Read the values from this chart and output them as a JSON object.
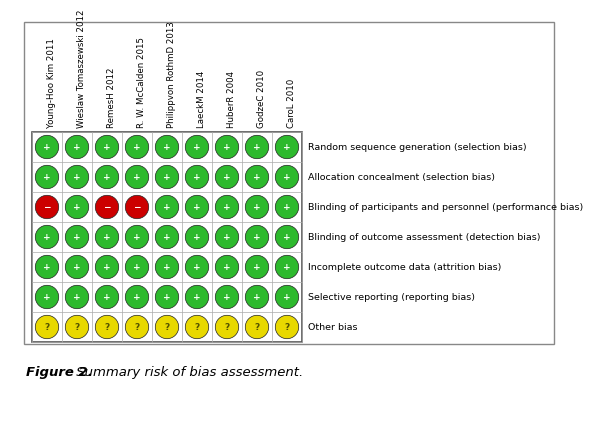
{
  "studies": [
    "Young-Hoo Kim 2011",
    "Wieslaw Tomaszewski 2012",
    "RemesH 2012",
    "R. W. McCalden 2015",
    "Philippvon RothmD 2013",
    "LaeckM 2014",
    "HuberR 2004",
    "GodzeC 2010",
    "CaroL 2010"
  ],
  "bias_categories": [
    "Random sequence generation (selection bias)",
    "Allocation concealment (selection bias)",
    "Blinding of participants and personnel (performance bias)",
    "Blinding of outcome assessment (detection bias)",
    "Incomplete outcome data (attrition bias)",
    "Selective reporting (reporting bias)",
    "Other bias"
  ],
  "grid": [
    [
      "green",
      "green",
      "green",
      "green",
      "green",
      "green",
      "green",
      "green",
      "green"
    ],
    [
      "green",
      "green",
      "green",
      "green",
      "green",
      "green",
      "green",
      "green",
      "green"
    ],
    [
      "red",
      "green",
      "red",
      "red",
      "green",
      "green",
      "green",
      "green",
      "green"
    ],
    [
      "green",
      "green",
      "green",
      "green",
      "green",
      "green",
      "green",
      "green",
      "green"
    ],
    [
      "green",
      "green",
      "green",
      "green",
      "green",
      "green",
      "green",
      "green",
      "green"
    ],
    [
      "green",
      "green",
      "green",
      "green",
      "green",
      "green",
      "green",
      "green",
      "green"
    ],
    [
      "yellow",
      "yellow",
      "yellow",
      "yellow",
      "yellow",
      "yellow",
      "yellow",
      "yellow",
      "yellow"
    ]
  ],
  "color_map": {
    "green": "#2db92d",
    "red": "#cc0000",
    "yellow": "#e8d800"
  },
  "symbol_map": {
    "green": "+",
    "red": "−",
    "yellow": "?"
  },
  "symbol_color": {
    "green": "white",
    "red": "white",
    "yellow": "#555500"
  },
  "figure_label": "Figure 2.",
  "figure_caption": " Summary risk of bias assessment.",
  "background_color": "#ffffff",
  "outer_border_color": "#666666",
  "grid_color": "#aaaaaa",
  "label_fontsize": 6.2,
  "bias_fontsize": 6.8,
  "symbol_fontsize": 6.5,
  "caption_fontsize": 9.5
}
